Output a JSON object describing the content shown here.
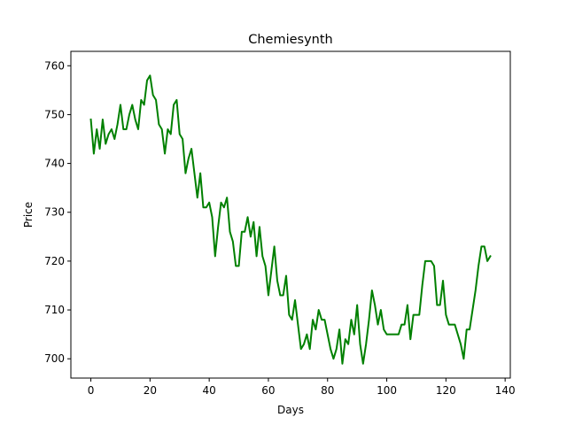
{
  "chart_data": {
    "type": "line",
    "title": "Chemiesynth",
    "xlabel": "Days",
    "ylabel": "Price",
    "xlim": [
      -6.75,
      141.75
    ],
    "ylim": [
      696.05,
      762.95
    ],
    "xticks": [
      0,
      20,
      40,
      60,
      80,
      100,
      120,
      140
    ],
    "yticks": [
      700,
      710,
      720,
      730,
      740,
      750,
      760
    ],
    "grid": false,
    "legend": "none",
    "series": [
      {
        "color": "#008000",
        "x": [
          0,
          1,
          2,
          3,
          4,
          5,
          6,
          7,
          8,
          9,
          10,
          11,
          12,
          13,
          14,
          15,
          16,
          17,
          18,
          19,
          20,
          21,
          22,
          23,
          24,
          25,
          26,
          27,
          28,
          29,
          30,
          31,
          32,
          33,
          34,
          35,
          36,
          37,
          38,
          39,
          40,
          41,
          42,
          43,
          44,
          45,
          46,
          47,
          48,
          49,
          50,
          51,
          52,
          53,
          54,
          55,
          56,
          57,
          58,
          59,
          60,
          61,
          62,
          63,
          64,
          65,
          66,
          67,
          68,
          69,
          70,
          71,
          72,
          73,
          74,
          75,
          76,
          77,
          78,
          79,
          80,
          81,
          82,
          83,
          84,
          85,
          86,
          87,
          88,
          89,
          90,
          91,
          92,
          93,
          94,
          95,
          96,
          97,
          98,
          99,
          100,
          101,
          102,
          103,
          104,
          105,
          106,
          107,
          108,
          109,
          110,
          111,
          112,
          113,
          114,
          115,
          116,
          117,
          118,
          119,
          120,
          121,
          122,
          123,
          124,
          125,
          126,
          127,
          128,
          129,
          130,
          131,
          132,
          133,
          134,
          135
        ],
        "y": [
          749,
          742,
          747,
          743,
          749,
          744,
          746,
          747,
          745,
          748,
          752,
          747,
          747,
          750,
          752,
          749,
          747,
          753,
          752,
          757,
          758,
          754,
          753,
          748,
          747,
          742,
          747,
          746,
          752,
          753,
          746,
          745,
          738,
          741,
          743,
          738,
          733,
          738,
          731,
          731,
          732,
          729,
          721,
          727,
          732,
          731,
          733,
          726,
          724,
          719,
          719,
          726,
          726,
          729,
          725,
          728,
          721,
          727,
          721,
          719,
          713,
          718,
          723,
          716,
          713,
          713,
          717,
          709,
          708,
          712,
          707,
          702,
          703,
          705,
          702,
          708,
          706,
          710,
          708,
          708,
          705,
          702,
          700,
          702,
          706,
          699,
          704,
          703,
          708,
          705,
          711,
          703,
          699,
          703,
          708,
          714,
          711,
          707,
          710,
          706,
          705,
          705,
          705,
          705,
          705,
          707,
          707,
          711,
          704,
          709,
          709,
          709,
          715,
          720,
          720,
          720,
          719,
          711,
          711,
          716,
          709,
          707,
          707,
          707,
          705,
          703,
          700,
          706,
          706,
          710,
          714,
          719,
          723,
          723,
          720,
          721
        ]
      }
    ]
  }
}
